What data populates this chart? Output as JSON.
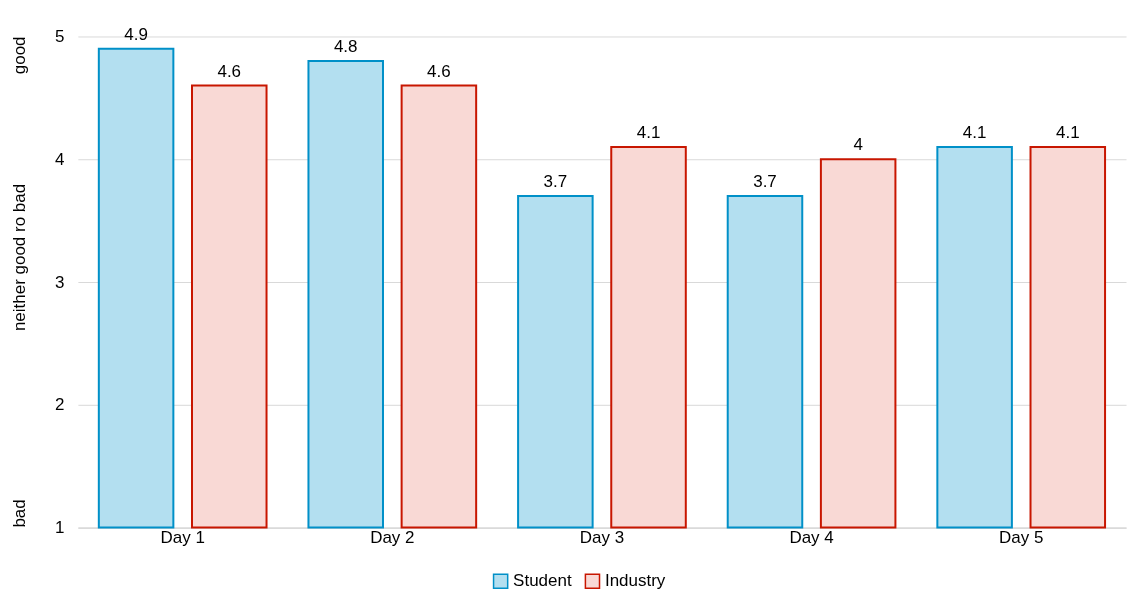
{
  "chart_data": {
    "type": "bar",
    "categories": [
      "Day 1",
      "Day 2",
      "Day 3",
      "Day 4",
      "Day 5"
    ],
    "series": [
      {
        "name": "Student",
        "color": "#b3dff0",
        "values": [
          4.9,
          4.8,
          3.7,
          3.7,
          4.1
        ]
      },
      {
        "name": "Industry",
        "color": "#f9d9d5",
        "values": [
          4.6,
          4.6,
          4.1,
          4.0,
          4.1
        ]
      }
    ],
    "ylim": [
      1,
      5
    ],
    "yticks": [
      1,
      2,
      3,
      4,
      5
    ],
    "grid": "y",
    "legend": "bottom",
    "data_labels": true,
    "annotations": [
      "good",
      "neither good ro bad",
      "bad"
    ]
  }
}
